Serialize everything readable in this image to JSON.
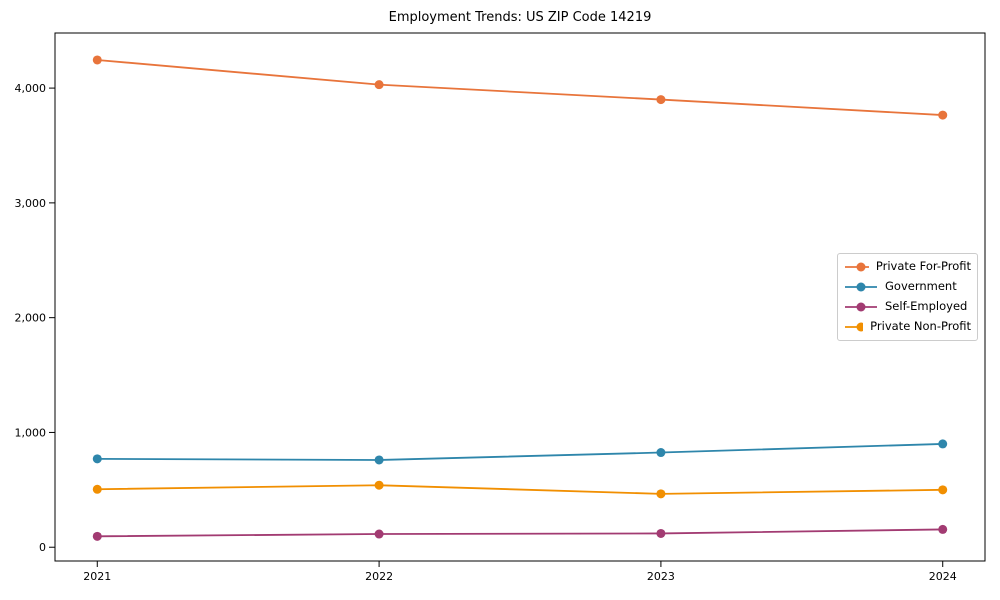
{
  "chart_data": {
    "type": "line",
    "title": "Employment Trends: US ZIP Code 14219",
    "xlabel": "",
    "ylabel": "",
    "x": [
      2021,
      2022,
      2023,
      2024
    ],
    "x_labels": [
      "2021",
      "2022",
      "2023",
      "2024"
    ],
    "series": [
      {
        "name": "Private For-Profit",
        "color": "#E8743B",
        "values": [
          4245,
          4030,
          3900,
          3765
        ]
      },
      {
        "name": "Government",
        "color": "#2E86AB",
        "values": [
          770,
          760,
          825,
          900
        ]
      },
      {
        "name": "Self-Employed",
        "color": "#A23B72",
        "values": [
          95,
          115,
          120,
          155
        ]
      },
      {
        "name": "Private Non-Profit",
        "color": "#F18F01",
        "values": [
          505,
          540,
          465,
          500
        ]
      }
    ],
    "yticks": [
      0,
      1000,
      2000,
      3000,
      4000
    ],
    "ytick_labels": [
      "0",
      "1,000",
      "2,000",
      "3,000",
      "4,000"
    ],
    "ylim": [
      -120,
      4480
    ],
    "xlim": [
      -0.15,
      3.15
    ],
    "grid": false,
    "legend_position": "center-right",
    "marker": "circle",
    "frame": "box"
  }
}
